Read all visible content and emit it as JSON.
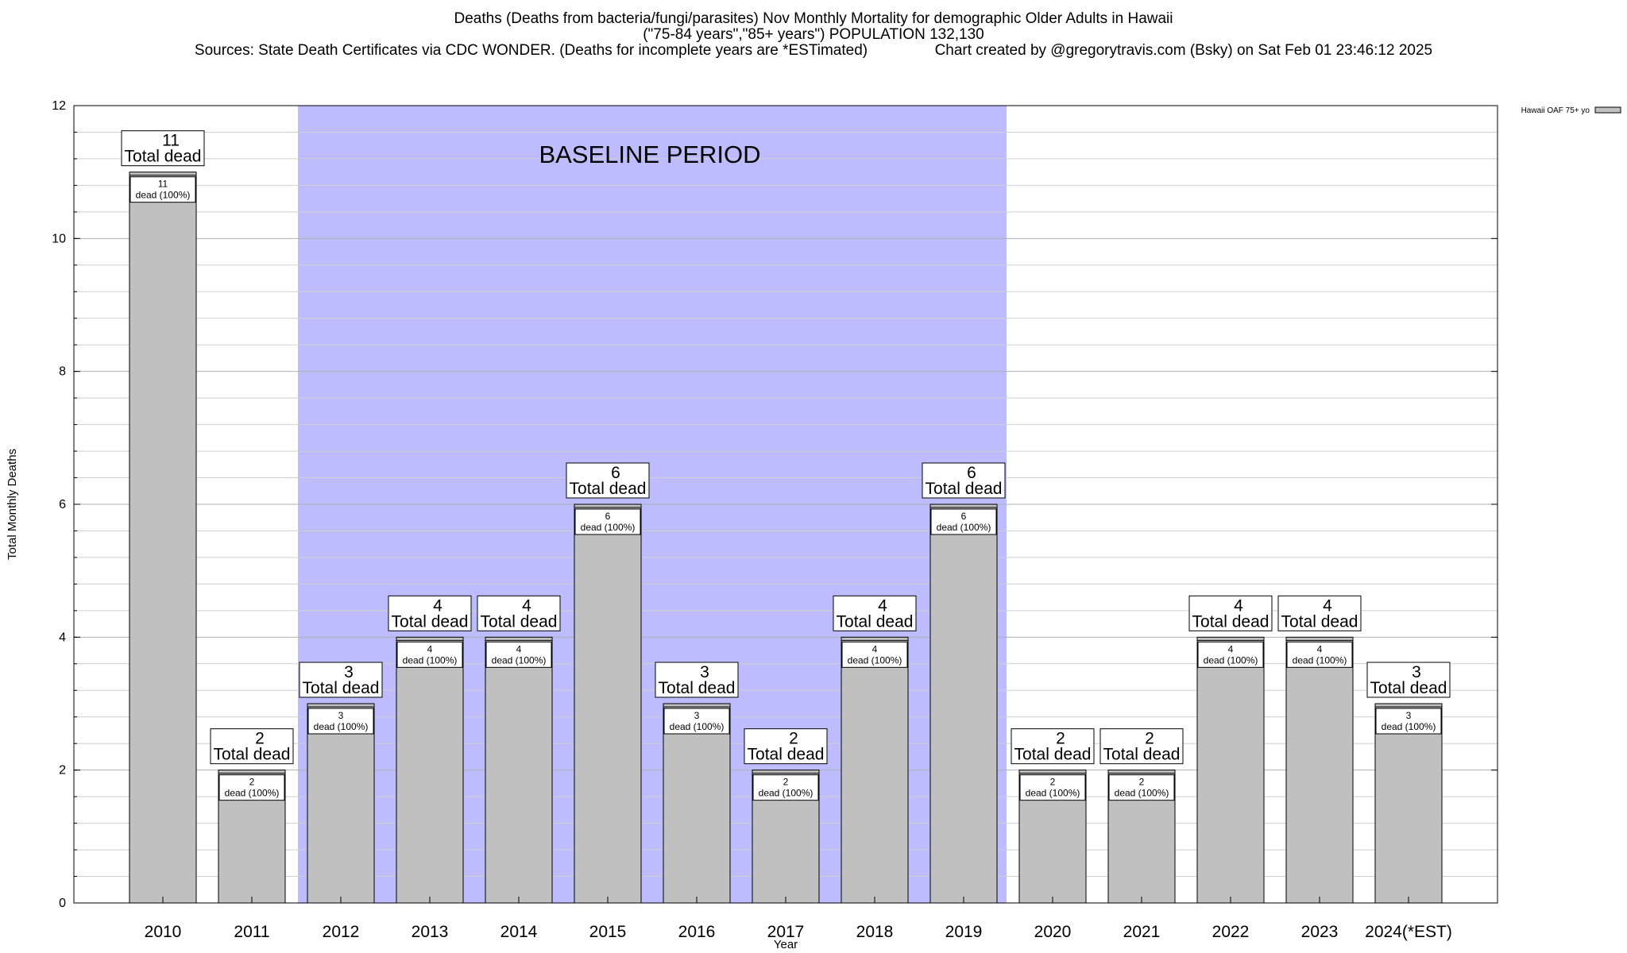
{
  "chart_data": {
    "type": "bar",
    "title": "Deaths (Deaths from bacteria/fungi/parasites) Nov Monthly Mortality for demographic Older Adults in Hawaii",
    "subtitle": "(\"75-84 years\",\"85+ years\") POPULATION 132,130",
    "sources": "Sources: State Death Certificates via CDC WONDER. (Deaths for incomplete years are *ESTimated)",
    "credit": "Chart created by @gregorytravis.com (Bsky) on Sat Feb 01 23:46:12 2025",
    "xlabel": "Year",
    "ylabel": "Total Monthly Deaths",
    "ylim": [
      0,
      12
    ],
    "yticks": [
      0,
      2,
      4,
      6,
      8,
      10,
      12
    ],
    "grid": true,
    "legend_position": "top-right",
    "series": [
      {
        "name": "Hawaii OAF 75+ yo",
        "color": "#c0c0c0",
        "values": [
          11,
          2,
          3,
          4,
          4,
          6,
          3,
          2,
          4,
          6,
          2,
          2,
          4,
          4,
          3
        ]
      }
    ],
    "categories": [
      "2010",
      "2011",
      "2012",
      "2013",
      "2014",
      "2015",
      "2016",
      "2017",
      "2018",
      "2019",
      "2020",
      "2021",
      "2022",
      "2023",
      "2024(*EST)"
    ],
    "bar_top_labels": [
      "11",
      "2",
      "3",
      "4",
      "4",
      "6",
      "3",
      "2",
      "4",
      "6",
      "2",
      "2",
      "4",
      "4",
      "3"
    ],
    "bar_top_label_suffix": "Total dead",
    "bar_inner_labels": [
      "11",
      "2",
      "3",
      "4",
      "4",
      "6",
      "3",
      "2",
      "4",
      "6",
      "2",
      "2",
      "4",
      "4",
      "3"
    ],
    "bar_inner_label_suffix": "dead (100%)",
    "baseline": {
      "label": "BASELINE PERIOD",
      "start": "2012",
      "end": "2019",
      "color": "#bcbcff"
    }
  }
}
